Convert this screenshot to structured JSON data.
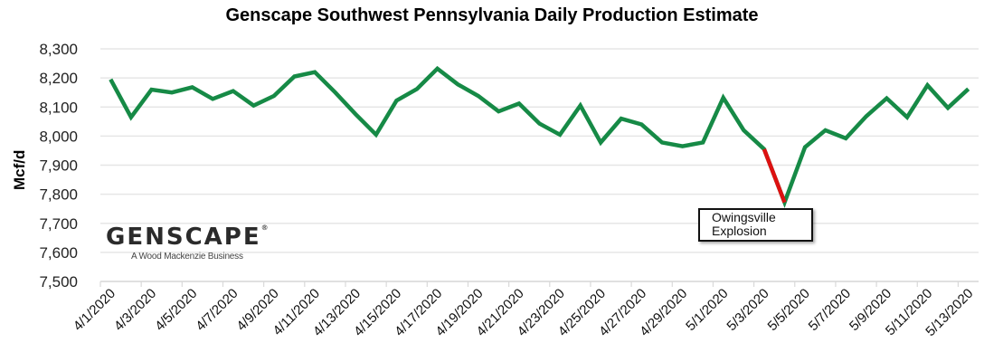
{
  "chart_data": {
    "type": "line",
    "title": "Genscape Southwest Pennsylvania Daily Production Estimate",
    "xlabel": "",
    "ylabel": "Mcf/d",
    "ylim": [
      7500,
      8300
    ],
    "yticks": [
      7500,
      7600,
      7700,
      7800,
      7900,
      8000,
      8100,
      8200,
      8300
    ],
    "ytick_labels": [
      "7,500",
      "7,600",
      "7,700",
      "7,800",
      "7,900",
      "8,000",
      "8,100",
      "8,200",
      "8,300"
    ],
    "grid": true,
    "legend": "none",
    "x": [
      "4/1/2020",
      "4/2/2020",
      "4/3/2020",
      "4/4/2020",
      "4/5/2020",
      "4/6/2020",
      "4/7/2020",
      "4/8/2020",
      "4/9/2020",
      "4/10/2020",
      "4/11/2020",
      "4/12/2020",
      "4/13/2020",
      "4/14/2020",
      "4/15/2020",
      "4/16/2020",
      "4/17/2020",
      "4/18/2020",
      "4/19/2020",
      "4/20/2020",
      "4/21/2020",
      "4/22/2020",
      "4/23/2020",
      "4/24/2020",
      "4/25/2020",
      "4/26/2020",
      "4/27/2020",
      "4/28/2020",
      "4/29/2020",
      "4/30/2020",
      "5/1/2020",
      "5/2/2020",
      "5/3/2020",
      "5/4/2020",
      "5/5/2020",
      "5/6/2020",
      "5/7/2020",
      "5/8/2020",
      "5/9/2020",
      "5/10/2020",
      "5/11/2020",
      "5/12/2020",
      "5/13/2020"
    ],
    "x_tick_labels": [
      "4/1/2020",
      "4/3/2020",
      "4/5/2020",
      "4/7/2020",
      "4/9/2020",
      "4/11/2020",
      "4/13/2020",
      "4/15/2020",
      "4/17/2020",
      "4/19/2020",
      "4/21/2020",
      "4/23/2020",
      "4/25/2020",
      "4/27/2020",
      "4/29/2020",
      "5/1/2020",
      "5/3/2020",
      "5/5/2020",
      "5/7/2020",
      "5/9/2020",
      "5/11/2020",
      "5/13/2020"
    ],
    "series": [
      {
        "name": "Daily Production Estimate",
        "color": "#168a46",
        "values": [
          8195,
          8065,
          8160,
          8150,
          8168,
          8128,
          8155,
          8105,
          8138,
          8205,
          8220,
          8150,
          8075,
          8005,
          8122,
          8162,
          8232,
          8178,
          8138,
          8085,
          8112,
          8043,
          8005,
          8105,
          7978,
          8060,
          8040,
          7978,
          7965,
          7978,
          8132,
          8020,
          7955,
          7772,
          7962,
          8020,
          7992,
          8068,
          8130,
          8065,
          8175,
          8097,
          8162
        ]
      }
    ],
    "highlight_segment": {
      "from_index": 32,
      "to_index": 33,
      "color": "#dd1111"
    },
    "annotations": [
      {
        "text_lines": [
          "Owingsville",
          "Explosion"
        ],
        "x": "5/4/2020",
        "y": 7772
      }
    ]
  },
  "logo": {
    "name": "GENSCAPE",
    "registered_mark": "®",
    "tagline": "A Wood Mackenzie Business"
  },
  "colors": {
    "line": "#168a46",
    "highlight": "#dd1111",
    "grid": "#e6e6e6"
  }
}
